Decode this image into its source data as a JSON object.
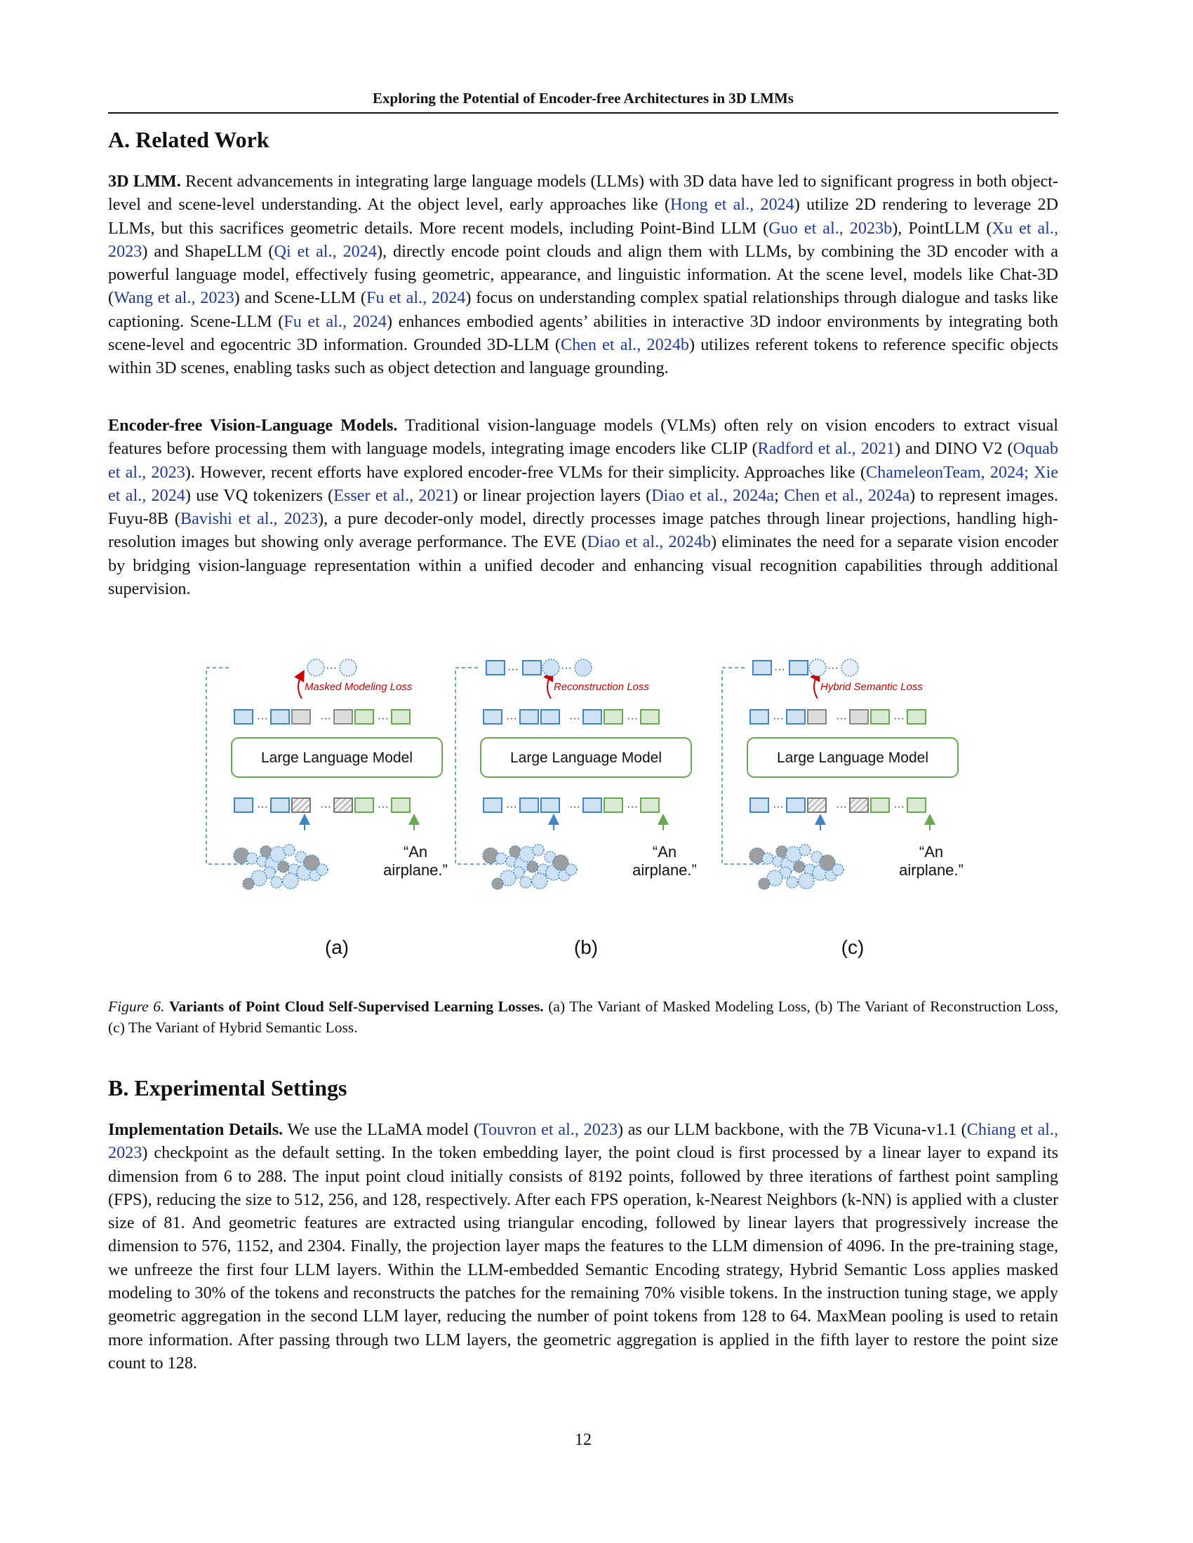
{
  "header": {
    "title": "Exploring the Potential of Encoder-free Architectures in 3D LMMs"
  },
  "section_a": {
    "heading": "A. Related Work",
    "p1_lead": "3D LMM.",
    "p1_segments": [
      {
        "t": " Recent advancements in integrating large language models (LLMs) with 3D data have led to significant progress in both object-level and scene-level understanding. At the object level, early approaches like ("
      },
      {
        "t": "Hong et al., 2024",
        "c": true
      },
      {
        "t": ") utilize 2D rendering to leverage 2D LLMs, but this sacrifices geometric details. More recent models, including Point-Bind LLM ("
      },
      {
        "t": "Guo et al., 2023b",
        "c": true
      },
      {
        "t": "), PointLLM ("
      },
      {
        "t": "Xu et al., 2023",
        "c": true
      },
      {
        "t": ") and ShapeLLM ("
      },
      {
        "t": "Qi et al., 2024",
        "c": true
      },
      {
        "t": "), directly encode point clouds and align them with LLMs, by combining the 3D encoder with a powerful language model, effectively fusing geometric, appearance, and linguistic information. At the scene level, models like Chat-3D ("
      },
      {
        "t": "Wang et al., 2023",
        "c": true
      },
      {
        "t": ") and Scene-LLM ("
      },
      {
        "t": "Fu et al., 2024",
        "c": true
      },
      {
        "t": ") focus on understanding complex spatial relationships through dialogue and tasks like captioning. Scene-LLM ("
      },
      {
        "t": "Fu et al., 2024",
        "c": true
      },
      {
        "t": ") enhances embodied agents’ abilities in interactive 3D indoor environments by integrating both scene-level and egocentric 3D information. Grounded 3D-LLM ("
      },
      {
        "t": "Chen et al., 2024b",
        "c": true
      },
      {
        "t": ") utilizes referent tokens to reference specific objects within 3D scenes, enabling tasks such as object detection and language grounding."
      }
    ],
    "p2_lead": "Encoder-free Vision-Language Models.",
    "p2_segments": [
      {
        "t": " Traditional vision-language models (VLMs) often rely on vision encoders to extract visual features before processing them with language models, integrating image encoders like CLIP ("
      },
      {
        "t": "Radford et al., 2021",
        "c": true
      },
      {
        "t": ") and DINO V2 ("
      },
      {
        "t": "Oquab et al., 2023",
        "c": true
      },
      {
        "t": "). However, recent efforts have explored encoder-free VLMs for their simplicity. Approaches like ("
      },
      {
        "t": "ChameleonTeam, 2024; Xie et al., 2024",
        "c": true
      },
      {
        "t": ") use VQ tokenizers ("
      },
      {
        "t": "Esser et al., 2021",
        "c": true
      },
      {
        "t": ") or linear projection layers ("
      },
      {
        "t": "Diao et al., 2024a",
        "c": true
      },
      {
        "t": "; "
      },
      {
        "t": "Chen et al., 2024a",
        "c": true
      },
      {
        "t": ") to represent images. Fuyu-8B ("
      },
      {
        "t": "Bavishi et al., 2023",
        "c": true
      },
      {
        "t": "), a pure decoder-only model, directly processes image patches through linear projections, handling high-resolution images but showing only average performance. The EVE ("
      },
      {
        "t": "Diao et al., 2024b",
        "c": true
      },
      {
        "t": ") eliminates the need for a separate vision encoder by bridging vision-language representation within a unified decoder and enhancing visual recognition capabilities through additional supervision."
      }
    ]
  },
  "figure": {
    "panels": [
      {
        "label": "(a)",
        "loss": "Masked Modeling Loss",
        "llm": "Large Language Model",
        "text": "“An airplane.”"
      },
      {
        "label": "(b)",
        "loss": "Reconstruction Loss",
        "llm": "Large Language Model",
        "text": "“An airplane.”"
      },
      {
        "label": "(c)",
        "loss": "Hybrid Semantic Loss",
        "llm": "Large Language Model",
        "text": "“An airplane.”"
      }
    ],
    "caption_num": "Figure 6.",
    "caption_title": "Variants of Point Cloud Self-Supervised Learning Losses.",
    "caption_text": " (a) The Variant of Masked Modeling Loss, (b) The Variant of Reconstruction Loss, (c) The Variant of Hybrid Semantic Loss.",
    "colors": {
      "blue_token": "#cfe2f3",
      "blue_stroke": "#3d85c6",
      "green_token": "#d9ead3",
      "green_stroke": "#6aa84f",
      "loss_red": "#cc0000"
    }
  },
  "section_b": {
    "heading": "B. Experimental Settings",
    "p1_lead": "Implementation Details.",
    "p1_segments": [
      {
        "t": " We use the LLaMA model ("
      },
      {
        "t": "Touvron et al., 2023",
        "c": true
      },
      {
        "t": ") as our LLM backbone, with the 7B Vicuna-v1.1 ("
      },
      {
        "t": "Chiang et al., 2023",
        "c": true
      },
      {
        "t": ") checkpoint as the default setting. In the token embedding layer, the point cloud is first processed by a linear layer to expand its dimension from 6 to 288. The input point cloud initially consists of 8192 points, followed by three iterations of farthest point sampling (FPS), reducing the size to 512, 256, and 128, respectively. After each FPS operation, k-Nearest Neighbors (k-NN) is applied with a cluster size of 81. And geometric features are extracted using triangular encoding, followed by linear layers that progressively increase the dimension to 576, 1152, and 2304. Finally, the projection layer maps the features to the LLM dimension of 4096. In the pre-training stage, we unfreeze the first four LLM layers. Within the LLM-embedded Semantic Encoding strategy, Hybrid Semantic Loss applies masked modeling to 30% of the tokens and reconstructs the patches for the remaining 70% visible tokens. In the instruction tuning stage, we apply geometric aggregation in the second LLM layer, reducing the number of point tokens from 128 to 64. MaxMean pooling is used to retain more information. After passing through two LLM layers, the geometric aggregation is applied in the fifth layer to restore the point size count to 128."
      }
    ]
  },
  "page_number": "12"
}
